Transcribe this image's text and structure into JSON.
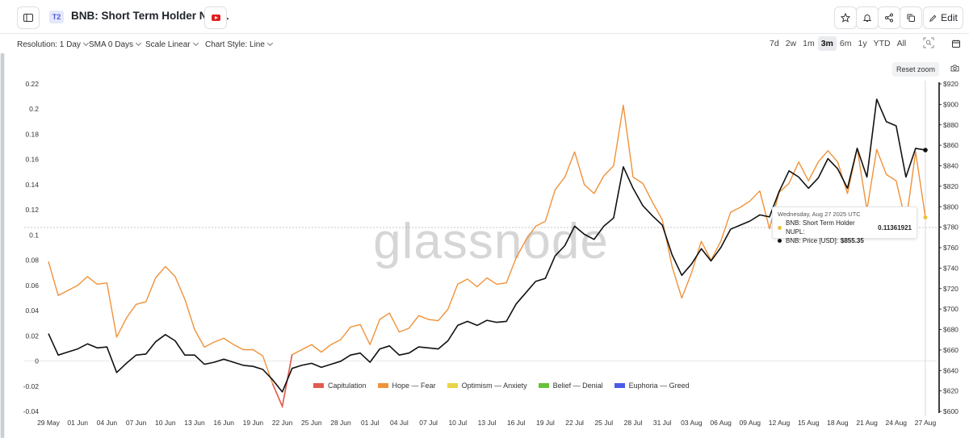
{
  "header": {
    "tier_badge": "T2",
    "title": "BNB: Short Term Holder NUPL",
    "edit_label": "Edit",
    "icons": [
      "sidebar-icon",
      "youtube-icon",
      "star-icon",
      "bell-icon",
      "share-icon",
      "copy-icon",
      "pencil-icon"
    ]
  },
  "toolbar": {
    "resolution": "Resolution: 1 Day",
    "sma": "SMA 0 Days",
    "scale": "Scale Linear",
    "chart_style": "Chart Style: Line",
    "ranges": [
      "7d",
      "2w",
      "1m",
      "3m",
      "6m",
      "1y",
      "YTD",
      "All"
    ],
    "active_range": "3m",
    "reset_zoom": "Reset zoom"
  },
  "watermark": "glassnode",
  "tooltip": {
    "date": "Wednesday, Aug 27 2025 UTC",
    "rows": [
      {
        "label": "BNB: Short Term Holder NUPL:",
        "value": "0.11361921",
        "color": "#e8c33a"
      },
      {
        "label": "BNB: Price [USD]:",
        "value": "$855.35",
        "color": "#111111"
      }
    ]
  },
  "legend": [
    {
      "label": "Capitulation",
      "color": "#e05c4f"
    },
    {
      "label": "Hope — Fear",
      "color": "#f0923a"
    },
    {
      "label": "Optimism — Anxiety",
      "color": "#e8d547"
    },
    {
      "label": "Belief — Denial",
      "color": "#67c23a"
    },
    {
      "label": "Euphoria — Greed",
      "color": "#4a5ce6"
    }
  ],
  "chart_data": {
    "type": "line",
    "x_tick_labels": [
      "29 May",
      "01 Jun",
      "04 Jun",
      "07 Jun",
      "10 Jun",
      "13 Jun",
      "16 Jun",
      "19 Jun",
      "22 Jun",
      "25 Jun",
      "28 Jun",
      "01 Jul",
      "04 Jul",
      "07 Jul",
      "10 Jul",
      "13 Jul",
      "16 Jul",
      "19 Jul",
      "22 Jul",
      "25 Jul",
      "28 Jul",
      "31 Jul",
      "03 Aug",
      "06 Aug",
      "09 Aug",
      "12 Aug",
      "15 Aug",
      "18 Aug",
      "21 Aug",
      "24 Aug",
      "27 Aug"
    ],
    "left_axis": {
      "min": -0.04,
      "max": 0.22,
      "ticks": [
        -0.04,
        -0.02,
        0,
        0.02,
        0.04,
        0.06,
        0.08,
        0.1,
        0.12,
        0.14,
        0.16,
        0.18,
        0.2,
        0.22
      ]
    },
    "left_tick_labels": [
      "-0.04",
      "-0.02",
      "0",
      "0.02",
      "0.04",
      "0.06",
      "0.08",
      "0.1",
      "0.12",
      "0.14",
      "0.16",
      "0.18",
      "0.2",
      "0.22"
    ],
    "right_axis": {
      "min": 600,
      "max": 920,
      "ticks": [
        600,
        620,
        640,
        660,
        680,
        700,
        720,
        740,
        760,
        780,
        800,
        820,
        840,
        860,
        880,
        900,
        920
      ]
    },
    "right_tick_labels": [
      "$600",
      "$620",
      "$640",
      "$660",
      "$680",
      "$700",
      "$720",
      "$740",
      "$760",
      "$780",
      "$800",
      "$820",
      "$840",
      "$860",
      "$880",
      "$900",
      "$920"
    ],
    "reference_line_value": 0.106,
    "series": [
      {
        "name": "BNB: Short Term Holder NUPL",
        "axis": "left",
        "color": "#f0923a",
        "values": [
          0.079,
          0.052,
          0.056,
          0.06,
          0.067,
          0.061,
          0.062,
          0.019,
          0.034,
          0.045,
          0.047,
          0.066,
          0.075,
          0.067,
          0.049,
          0.025,
          0.011,
          0.015,
          0.018,
          0.013,
          0.009,
          0.009,
          0.004,
          -0.018,
          -0.036,
          0.005,
          0.009,
          0.013,
          0.007,
          0.013,
          0.017,
          0.027,
          0.029,
          0.013,
          0.033,
          0.038,
          0.023,
          0.026,
          0.036,
          0.033,
          0.032,
          0.041,
          0.061,
          0.065,
          0.059,
          0.066,
          0.061,
          0.062,
          0.082,
          0.096,
          0.107,
          0.111,
          0.136,
          0.146,
          0.166,
          0.14,
          0.133,
          0.147,
          0.155,
          0.203,
          0.146,
          0.141,
          0.126,
          0.112,
          0.075,
          0.05,
          0.07,
          0.095,
          0.08,
          0.095,
          0.118,
          0.122,
          0.127,
          0.135,
          0.105,
          0.134,
          0.141,
          0.158,
          0.143,
          0.158,
          0.167,
          0.158,
          0.133,
          0.169,
          0.12,
          0.168,
          0.148,
          0.143,
          0.11,
          0.166,
          0.114
        ]
      },
      {
        "name": "BNB: Price [USD]",
        "axis": "right",
        "color": "#111111",
        "values": [
          676,
          655,
          658,
          661,
          666,
          662,
          663,
          638,
          647,
          655,
          656,
          668,
          675,
          669,
          655,
          655,
          646,
          648,
          651,
          648,
          645,
          644,
          641,
          631,
          619,
          642,
          645,
          647,
          643,
          646,
          649,
          655,
          657,
          648,
          661,
          664,
          655,
          657,
          663,
          662,
          661,
          669,
          684,
          688,
          684,
          689,
          687,
          688,
          705,
          716,
          727,
          730,
          752,
          762,
          781,
          773,
          768,
          781,
          789,
          839,
          818,
          801,
          791,
          782,
          753,
          733,
          744,
          759,
          747,
          760,
          778,
          782,
          786,
          792,
          790,
          815,
          835,
          829,
          818,
          828,
          847,
          837,
          818,
          857,
          829,
          905,
          883,
          879,
          829,
          857,
          855.35
        ]
      }
    ]
  }
}
